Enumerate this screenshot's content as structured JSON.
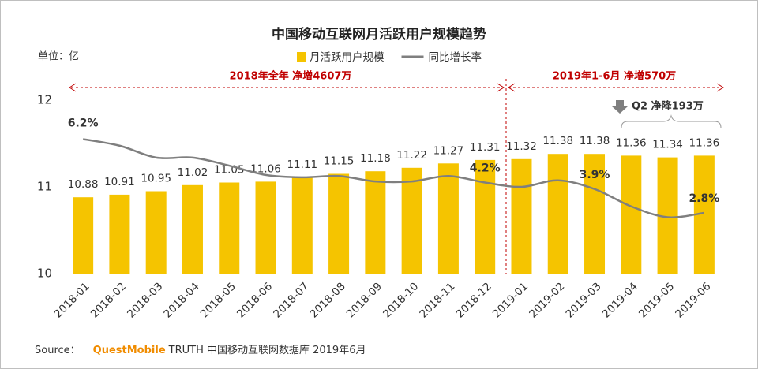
{
  "chart_data": {
    "type": "bar-line",
    "title": "中国移动互联网月活跃用户规模趋势",
    "unit_label": "单位：亿",
    "categories": [
      "2018-01",
      "2018-02",
      "2018-03",
      "2018-04",
      "2018-05",
      "2018-06",
      "2018-07",
      "2018-08",
      "2018-09",
      "2018-10",
      "2018-11",
      "2018-12",
      "2019-01",
      "2019-02",
      "2019-03",
      "2019-04",
      "2019-05",
      "2019-06"
    ],
    "series": [
      {
        "name": "月活跃用户规模",
        "color": "#f5c400",
        "type": "bar",
        "values": [
          10.88,
          10.91,
          10.95,
          11.02,
          11.05,
          11.06,
          11.11,
          11.15,
          11.18,
          11.22,
          11.27,
          11.31,
          11.32,
          11.38,
          11.38,
          11.36,
          11.34,
          11.36
        ]
      },
      {
        "name": "同比增长率",
        "color": "#7f7f7f",
        "type": "line",
        "axis": "y2",
        "values": [
          6.2,
          5.9,
          5.35,
          5.35,
          4.98,
          4.55,
          4.44,
          4.5,
          4.25,
          4.25,
          4.5,
          4.2,
          4.0,
          4.3,
          3.9,
          3.1,
          2.6,
          2.8
        ],
        "value_labels": [
          "6.2%",
          null,
          null,
          null,
          null,
          null,
          null,
          null,
          null,
          null,
          null,
          "4.2%",
          null,
          null,
          "3.9%",
          null,
          null,
          "2.8%"
        ]
      }
    ],
    "ylim": [
      10,
      12
    ],
    "yticks": [
      10,
      11,
      12
    ],
    "y2lim": [
      0,
      8
    ],
    "annotations": {
      "period_2018": "2018年全年  净增4607万",
      "period_2019": "2019年1-6月  净增570万",
      "q2": "Q2  净降193万"
    },
    "source": {
      "prefix": "Source：",
      "brand": "QuestMobile",
      "rest": "TRUTH 中国移动互联网数据库 2019年6月"
    }
  }
}
